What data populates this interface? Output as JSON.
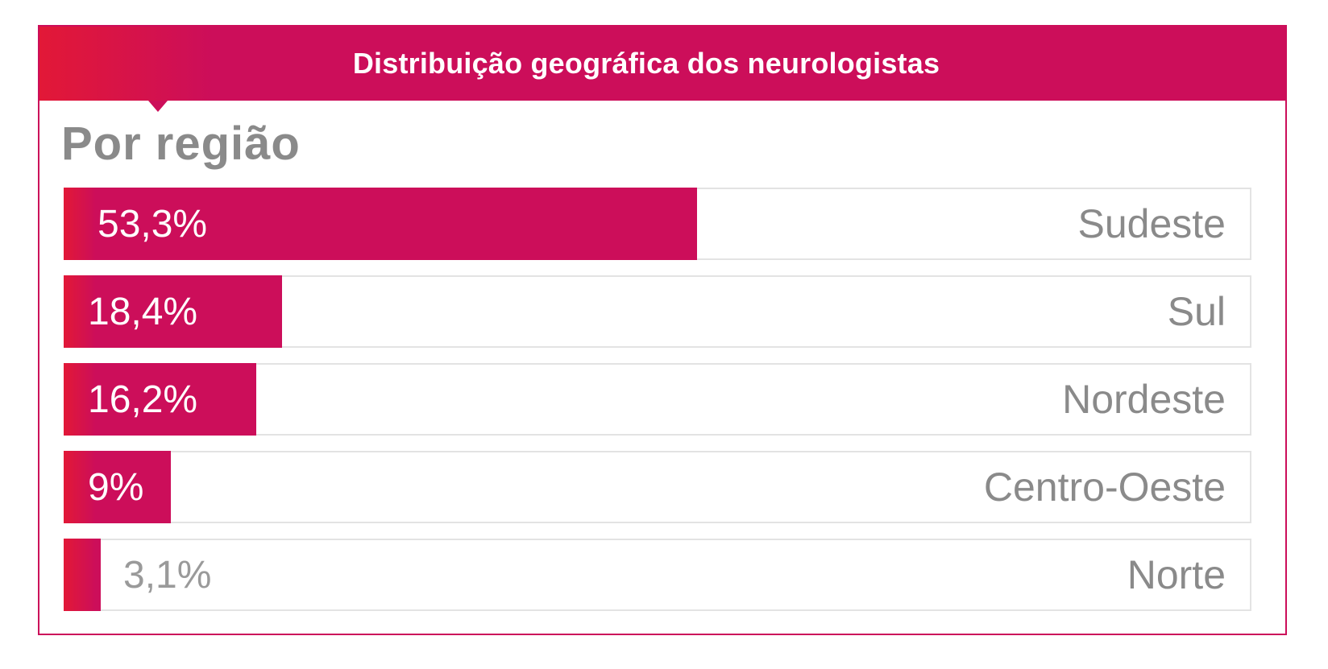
{
  "header": {
    "title": "Distribuição geográfica dos neurologistas"
  },
  "colors": {
    "accent": "#cc0e5a",
    "accent_start": "#e21837",
    "track_border": "#e3e3e3",
    "label_gray": "#8a8a8a"
  },
  "chart_data": {
    "type": "bar",
    "orientation": "horizontal",
    "title": "Distribuição geográfica dos neurologistas",
    "subtitle": "Por região",
    "unit": "%",
    "xlim": [
      0,
      100
    ],
    "categories": [
      "Sudeste",
      "Sul",
      "Nordeste",
      "Centro-Oeste",
      "Norte"
    ],
    "values": [
      53.3,
      18.4,
      16.2,
      9,
      3.1
    ],
    "value_labels": [
      "53,3%",
      "18,4%",
      "16,2%",
      "9%",
      "3,1%"
    ]
  }
}
